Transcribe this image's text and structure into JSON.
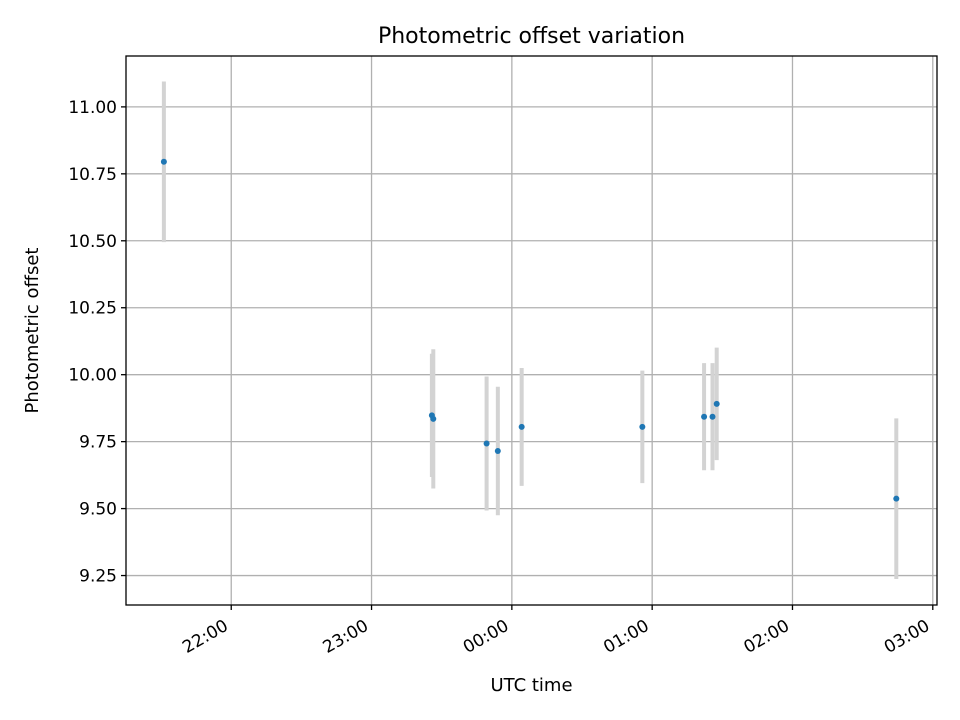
{
  "chart_data": {
    "type": "scatter",
    "title": "Photometric offset variation",
    "xlabel": "UTC time",
    "ylabel": "Photometric offset",
    "x_unit": "hours (UTC clock time; values past 24 are after midnight)",
    "xlim": [
      21.25,
      27.03
    ],
    "ylim": [
      9.14,
      11.19
    ],
    "x_ticks": [
      {
        "value": 22,
        "label": "22:00"
      },
      {
        "value": 23,
        "label": "23:00"
      },
      {
        "value": 24,
        "label": "00:00"
      },
      {
        "value": 25,
        "label": "01:00"
      },
      {
        "value": 26,
        "label": "02:00"
      },
      {
        "value": 27,
        "label": "03:00"
      }
    ],
    "y_ticks": [
      {
        "value": 9.25,
        "label": "9.25"
      },
      {
        "value": 9.5,
        "label": "9.50"
      },
      {
        "value": 9.75,
        "label": "9.75"
      },
      {
        "value": 10.0,
        "label": "10.00"
      },
      {
        "value": 10.25,
        "label": "10.25"
      },
      {
        "value": 10.5,
        "label": "10.50"
      },
      {
        "value": 10.75,
        "label": "10.75"
      },
      {
        "value": 11.0,
        "label": "11.00"
      }
    ],
    "grid": true,
    "marker_color": "#1f77b4",
    "errorbar_color": "#d3d3d3",
    "points": [
      {
        "x": 21.52,
        "y": 10.795,
        "err": 0.3
      },
      {
        "x": 23.43,
        "y": 9.848,
        "err": 0.23
      },
      {
        "x": 23.44,
        "y": 9.835,
        "err": 0.26
      },
      {
        "x": 23.82,
        "y": 9.743,
        "err": 0.25
      },
      {
        "x": 23.9,
        "y": 9.715,
        "err": 0.24
      },
      {
        "x": 24.07,
        "y": 9.805,
        "err": 0.22
      },
      {
        "x": 24.93,
        "y": 9.805,
        "err": 0.21
      },
      {
        "x": 25.37,
        "y": 9.843,
        "err": 0.2
      },
      {
        "x": 25.43,
        "y": 9.843,
        "err": 0.2
      },
      {
        "x": 25.46,
        "y": 9.891,
        "err": 0.21
      },
      {
        "x": 26.74,
        "y": 9.537,
        "err": 0.3
      }
    ]
  }
}
